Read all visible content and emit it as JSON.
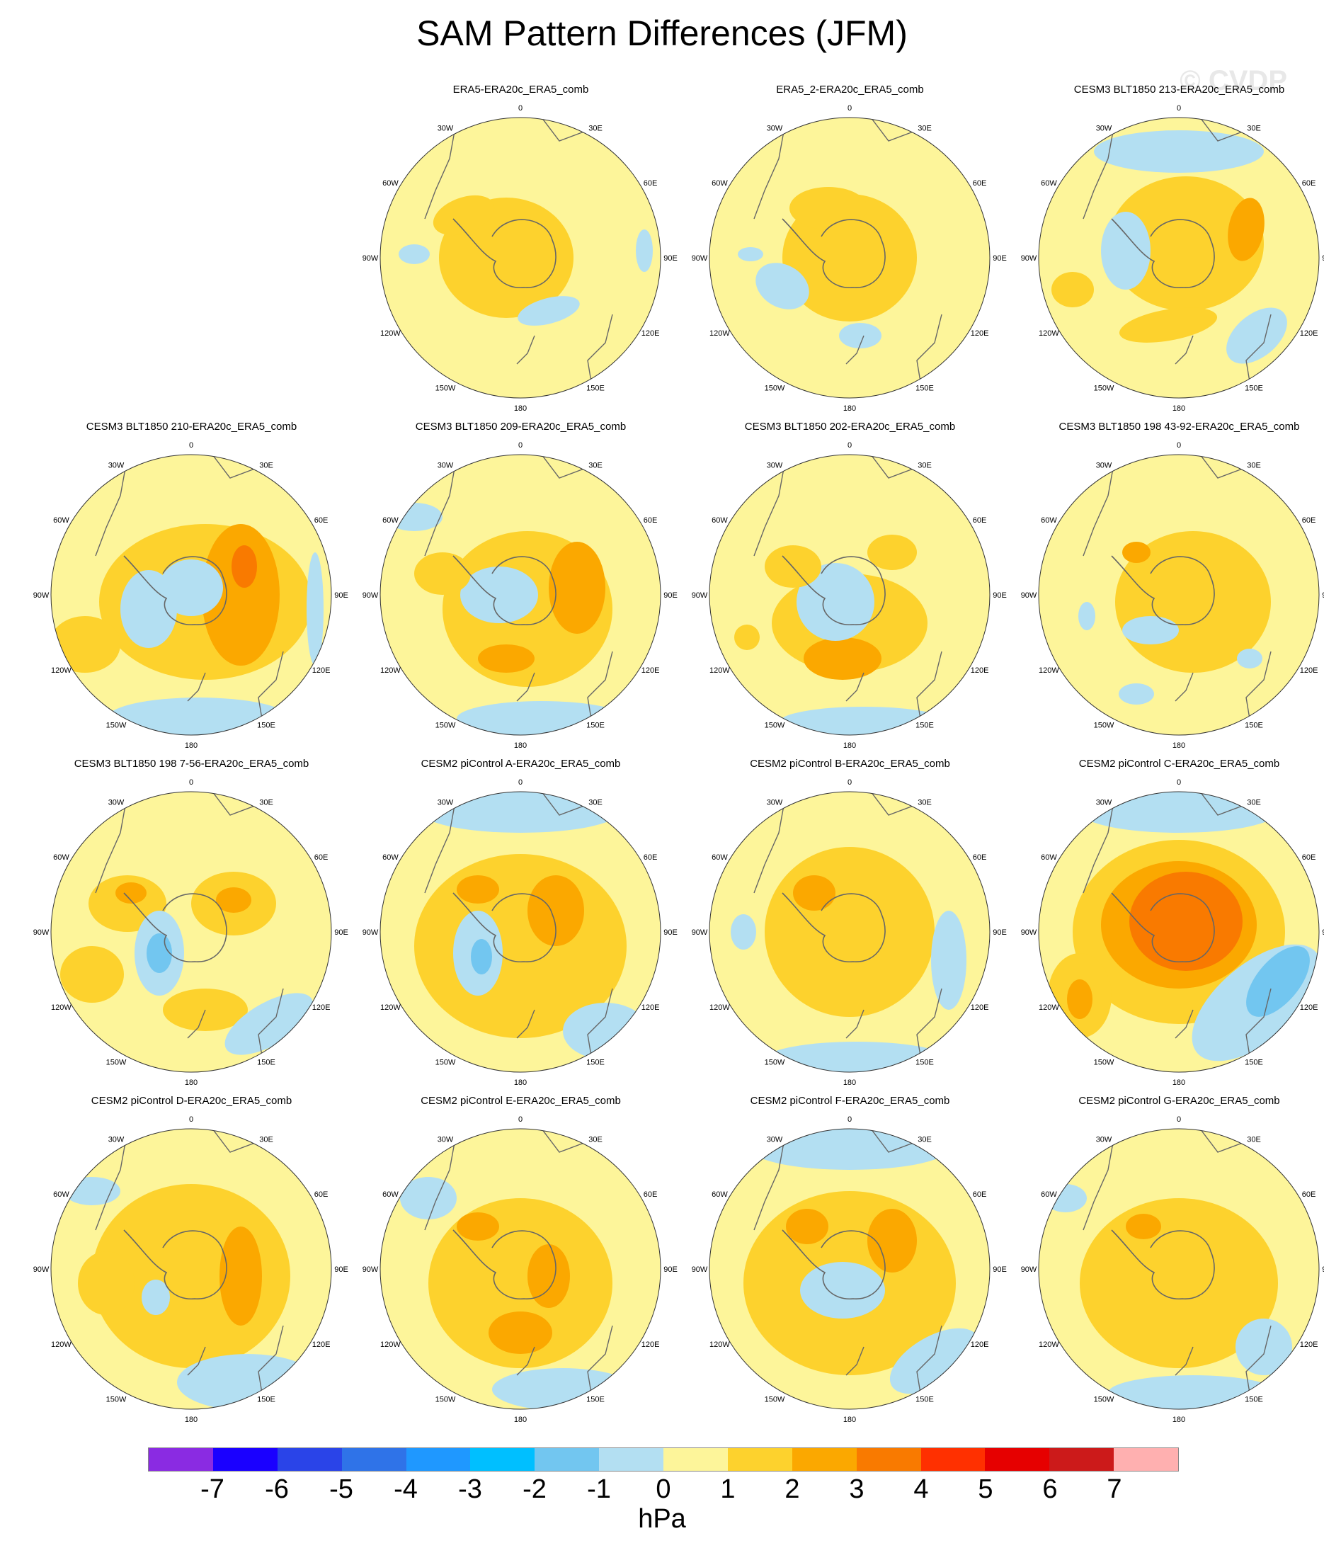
{
  "title": "SAM Pattern Differences (JFM)",
  "watermark": "© CVDP",
  "lon_labels": [
    "0",
    "30E",
    "60E",
    "90E",
    "120E",
    "150E",
    "180",
    "150W",
    "120W",
    "90W",
    "60W",
    "30W"
  ],
  "colors": {
    "base": "#fdf59a",
    "pos1": "#fdd22d",
    "pos2": "#fba800",
    "pos3": "#f97a00",
    "neg1": "#b3dff2",
    "neg2": "#72c6f0",
    "coast": "#666666",
    "border": "#333333"
  },
  "panels": [
    {
      "title": "ERA5-ERA20c_ERA5_comb"
    },
    {
      "title": "ERA5_2-ERA20c_ERA5_comb"
    },
    {
      "title": "CESM3 BLT1850 213-ERA20c_ERA5_comb"
    },
    {
      "title": "CESM3 BLT1850 210-ERA20c_ERA5_comb"
    },
    {
      "title": "CESM3 BLT1850 209-ERA20c_ERA5_comb"
    },
    {
      "title": "CESM3 BLT1850 202-ERA20c_ERA5_comb"
    },
    {
      "title": "CESM3 BLT1850 198 43-92-ERA20c_ERA5_comb"
    },
    {
      "title": "CESM3 BLT1850 198 7-56-ERA20c_ERA5_comb"
    },
    {
      "title": "CESM2 piControl A-ERA20c_ERA5_comb"
    },
    {
      "title": "CESM2 piControl B-ERA20c_ERA5_comb"
    },
    {
      "title": "CESM2 piControl C-ERA20c_ERA5_comb"
    },
    {
      "title": "CESM2 piControl D-ERA20c_ERA5_comb"
    },
    {
      "title": "CESM2 piControl E-ERA20c_ERA5_comb"
    },
    {
      "title": "CESM2 piControl F-ERA20c_ERA5_comb"
    },
    {
      "title": "CESM2 piControl G-ERA20c_ERA5_comb"
    }
  ],
  "colorbar": {
    "colors": [
      "#8a2be2",
      "#1a00ff",
      "#2a44e8",
      "#2f73e8",
      "#1f98ff",
      "#00bfff",
      "#72c6f0",
      "#b3dff2",
      "#fdf59a",
      "#fdd22d",
      "#fba800",
      "#f97a00",
      "#ff3000",
      "#e60000",
      "#cc1a1a",
      "#ffb0b0"
    ],
    "ticks": [
      "-7",
      "-6",
      "-5",
      "-4",
      "-3",
      "-2",
      "-1",
      "0",
      "1",
      "2",
      "3",
      "4",
      "5",
      "6",
      "7"
    ],
    "units": "hPa"
  }
}
